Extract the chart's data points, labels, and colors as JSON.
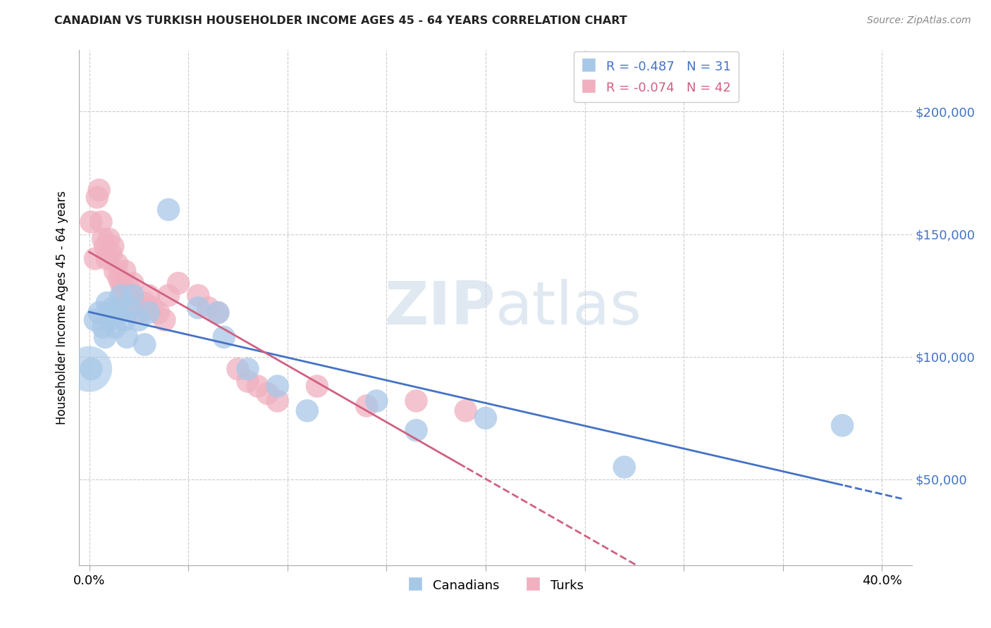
{
  "title": "CANADIAN VS TURKISH HOUSEHOLDER INCOME AGES 45 - 64 YEARS CORRELATION CHART",
  "source": "Source: ZipAtlas.com",
  "ylabel": "Householder Income Ages 45 - 64 years",
  "xlabel_ticks": [
    "0.0%",
    "",
    "",
    "",
    "",
    "",
    "",
    "",
    "40.0%"
  ],
  "xlabel_vals": [
    0.0,
    0.05,
    0.1,
    0.15,
    0.2,
    0.25,
    0.3,
    0.35,
    0.4
  ],
  "ytick_labels": [
    "$50,000",
    "$100,000",
    "$150,000",
    "$200,000"
  ],
  "ytick_vals": [
    50000,
    100000,
    150000,
    200000
  ],
  "ymin": 15000,
  "ymax": 225000,
  "xmin": -0.005,
  "xmax": 0.415,
  "canadian_color": "#a8c8e8",
  "turkish_color": "#f0b0c0",
  "canadian_R": -0.487,
  "canadian_N": 31,
  "turkish_R": -0.074,
  "turkish_N": 42,
  "canadian_line_color": "#4472c4",
  "turkish_line_color": "#d06080",
  "watermark_zip": "ZIP",
  "watermark_atlas": "atlas",
  "canadians_x": [
    0.001,
    0.003,
    0.005,
    0.007,
    0.008,
    0.009,
    0.01,
    0.011,
    0.012,
    0.013,
    0.015,
    0.016,
    0.018,
    0.019,
    0.02,
    0.022,
    0.025,
    0.028,
    0.03,
    0.04,
    0.055,
    0.065,
    0.068,
    0.08,
    0.095,
    0.11,
    0.145,
    0.165,
    0.2,
    0.27,
    0.38
  ],
  "canadians_y": [
    95000,
    115000,
    118000,
    112000,
    108000,
    122000,
    118000,
    115000,
    120000,
    112000,
    118000,
    125000,
    115000,
    108000,
    120000,
    125000,
    115000,
    105000,
    118000,
    160000,
    120000,
    118000,
    108000,
    95000,
    88000,
    78000,
    82000,
    70000,
    75000,
    55000,
    72000
  ],
  "turks_x": [
    0.001,
    0.003,
    0.004,
    0.005,
    0.006,
    0.007,
    0.008,
    0.009,
    0.01,
    0.011,
    0.012,
    0.013,
    0.014,
    0.015,
    0.016,
    0.017,
    0.018,
    0.019,
    0.02,
    0.021,
    0.022,
    0.023,
    0.025,
    0.028,
    0.03,
    0.032,
    0.035,
    0.038,
    0.04,
    0.045,
    0.055,
    0.06,
    0.065,
    0.075,
    0.08,
    0.085,
    0.09,
    0.095,
    0.115,
    0.14,
    0.165,
    0.19
  ],
  "turks_y": [
    155000,
    140000,
    165000,
    168000,
    155000,
    148000,
    145000,
    140000,
    148000,
    142000,
    145000,
    135000,
    138000,
    132000,
    130000,
    128000,
    135000,
    122000,
    128000,
    125000,
    130000,
    122000,
    118000,
    122000,
    125000,
    120000,
    118000,
    115000,
    125000,
    130000,
    125000,
    120000,
    118000,
    95000,
    90000,
    88000,
    85000,
    82000,
    88000,
    80000,
    82000,
    78000
  ],
  "grid_color": "#cccccc",
  "bg_color": "#ffffff"
}
